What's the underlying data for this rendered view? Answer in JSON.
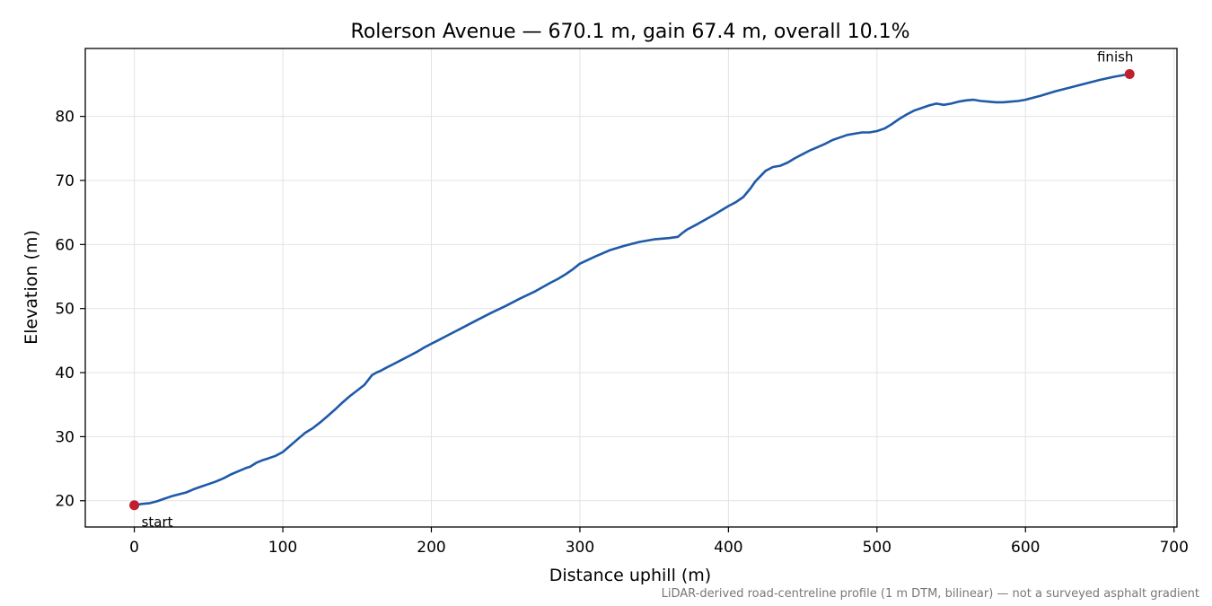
{
  "chart_data": {
    "type": "line",
    "title": "Rolerson Avenue — 670.1 m, gain 67.4 m, overall 10.1%",
    "xlabel": "Distance uphill (m)",
    "ylabel": "Elevation (m)",
    "xlim": [
      -33,
      702
    ],
    "ylim": [
      15.9,
      90.6
    ],
    "xticks": [
      0,
      100,
      200,
      300,
      400,
      500,
      600,
      700
    ],
    "yticks": [
      20,
      30,
      40,
      50,
      60,
      70,
      80
    ],
    "grid": true,
    "footnote": "LiDAR-derived road-centreline profile (1 m DTM, bilinear) — not a surveyed asphalt gradient",
    "line_color": "#1f5aa8",
    "marker_color": "#c01f2e",
    "series": [
      {
        "x": [
          0,
          5,
          10,
          15,
          20,
          25,
          30,
          35,
          40,
          45,
          50,
          55,
          60,
          65,
          70,
          75,
          78,
          82,
          86,
          90,
          95,
          100,
          105,
          110,
          115,
          120,
          125,
          130,
          135,
          140,
          145,
          150,
          155,
          158,
          160,
          163,
          166,
          170,
          175,
          180,
          185,
          190,
          195,
          200,
          205,
          210,
          220,
          230,
          240,
          250,
          260,
          270,
          280,
          285,
          290,
          295,
          300,
          310,
          320,
          330,
          340,
          350,
          360,
          366,
          369,
          372,
          380,
          390,
          400,
          405,
          410,
          415,
          418,
          420,
          425,
          430,
          435,
          440,
          445,
          450,
          455,
          460,
          465,
          470,
          475,
          480,
          485,
          490,
          495,
          500,
          505,
          510,
          515,
          520,
          525,
          530,
          535,
          540,
          545,
          550,
          555,
          560,
          565,
          570,
          575,
          580,
          585,
          590,
          595,
          600,
          610,
          620,
          630,
          640,
          650,
          660,
          670.1
        ],
        "y": [
          19.3,
          19.5,
          19.6,
          19.9,
          20.3,
          20.7,
          21.0,
          21.3,
          21.8,
          22.2,
          22.6,
          23.0,
          23.5,
          24.1,
          24.6,
          25.1,
          25.3,
          25.9,
          26.3,
          26.6,
          27.0,
          27.6,
          28.6,
          29.6,
          30.6,
          31.3,
          32.2,
          33.2,
          34.2,
          35.3,
          36.3,
          37.2,
          38.1,
          39.0,
          39.6,
          40.0,
          40.3,
          40.8,
          41.4,
          42.0,
          42.6,
          43.2,
          43.9,
          44.5,
          45.1,
          45.7,
          46.9,
          48.1,
          49.3,
          50.4,
          51.6,
          52.7,
          54.0,
          54.6,
          55.3,
          56.1,
          57.0,
          58.1,
          59.1,
          59.8,
          60.4,
          60.8,
          61.0,
          61.2,
          61.8,
          62.3,
          63.3,
          64.6,
          66.0,
          66.6,
          67.4,
          68.8,
          69.8,
          70.3,
          71.5,
          72.1,
          72.3,
          72.8,
          73.5,
          74.1,
          74.7,
          75.2,
          75.7,
          76.3,
          76.7,
          77.1,
          77.3,
          77.5,
          77.5,
          77.7,
          78.1,
          78.8,
          79.6,
          80.3,
          80.9,
          81.3,
          81.7,
          82.0,
          81.8,
          82.0,
          82.3,
          82.5,
          82.6,
          82.4,
          82.3,
          82.2,
          82.2,
          82.3,
          82.4,
          82.6,
          83.2,
          83.9,
          84.5,
          85.1,
          85.7,
          86.2,
          86.6
        ]
      }
    ],
    "annotations": [
      {
        "label": "start",
        "x": 0,
        "y": 19.3
      },
      {
        "label": "finish",
        "x": 670.1,
        "y": 86.6
      }
    ]
  }
}
